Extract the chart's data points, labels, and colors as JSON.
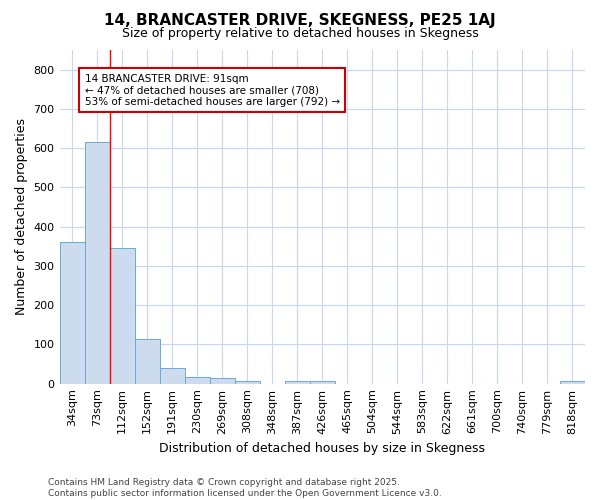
{
  "title": "14, BRANCASTER DRIVE, SKEGNESS, PE25 1AJ",
  "subtitle": "Size of property relative to detached houses in Skegness",
  "xlabel": "Distribution of detached houses by size in Skegness",
  "ylabel": "Number of detached properties",
  "bar_labels": [
    "34sqm",
    "73sqm",
    "112sqm",
    "152sqm",
    "191sqm",
    "230sqm",
    "269sqm",
    "308sqm",
    "348sqm",
    "387sqm",
    "426sqm",
    "465sqm",
    "504sqm",
    "544sqm",
    "583sqm",
    "622sqm",
    "661sqm",
    "700sqm",
    "740sqm",
    "779sqm",
    "818sqm"
  ],
  "bar_values": [
    360,
    615,
    345,
    113,
    40,
    18,
    14,
    8,
    0,
    8,
    8,
    0,
    0,
    0,
    0,
    0,
    0,
    0,
    0,
    0,
    6
  ],
  "bar_color": "#ccdcee",
  "bar_edge_color": "#6aaad4",
  "background_color": "#ffffff",
  "grid_color": "#c8d8ec",
  "red_line_index": 2,
  "annotation_text": "14 BRANCASTER DRIVE: 91sqm\n← 47% of detached houses are smaller (708)\n53% of semi-detached houses are larger (792) →",
  "annotation_box_color": "#ffffff",
  "annotation_box_edge": "#cc0000",
  "ylim": [
    0,
    850
  ],
  "yticks": [
    0,
    100,
    200,
    300,
    400,
    500,
    600,
    700,
    800
  ],
  "footnote": "Contains HM Land Registry data © Crown copyright and database right 2025.\nContains public sector information licensed under the Open Government Licence v3.0.",
  "title_fontsize": 11,
  "subtitle_fontsize": 9,
  "axis_label_fontsize": 9,
  "tick_fontsize": 8,
  "annotation_fontsize": 7.5,
  "footnote_fontsize": 6.5
}
